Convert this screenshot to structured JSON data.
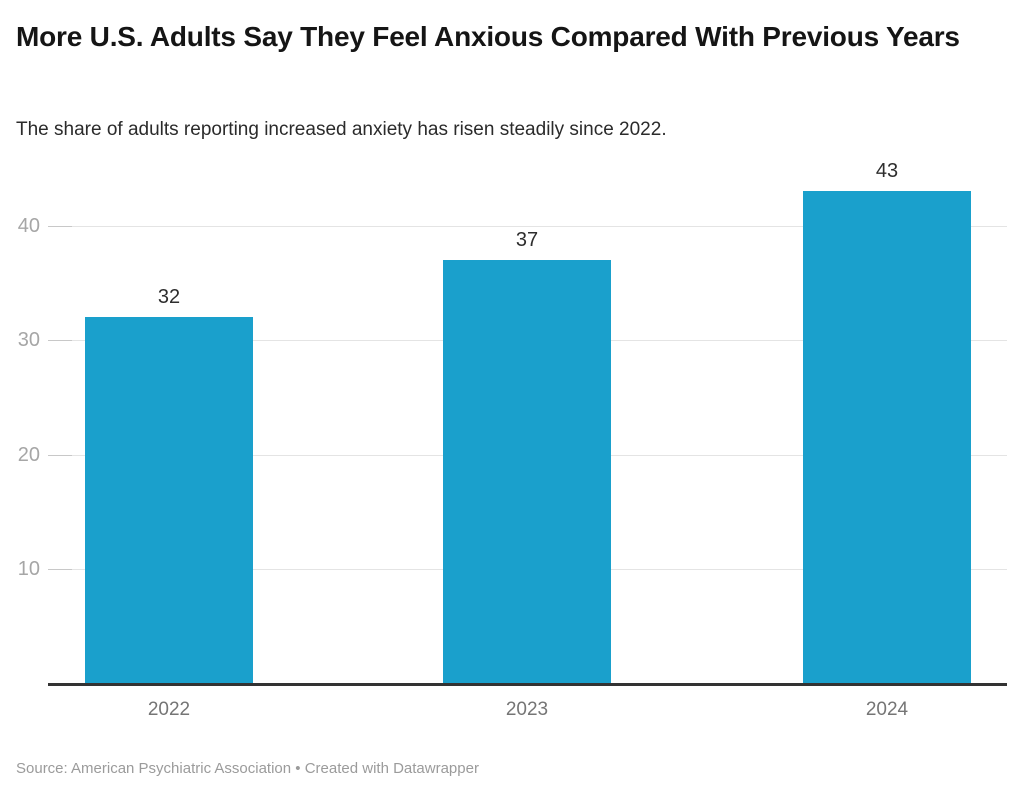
{
  "chart_data": {
    "type": "bar",
    "title": "More U.S. Adults Say They Feel Anxious Compared With Previous Years",
    "subtitle": "The share of adults reporting increased anxiety has risen steadily since 2022.",
    "categories": [
      "2022",
      "2023",
      "2024"
    ],
    "values": [
      32,
      37,
      43
    ],
    "xlabel": "",
    "ylabel": "",
    "ylim": [
      0,
      44
    ],
    "yticks": [
      10,
      20,
      30,
      40
    ],
    "grid": true,
    "legend": false
  },
  "footer": {
    "source": "Source: American Psychiatric Association • Created with Datawrapper"
  },
  "colors": {
    "bar": "#1aa0cc",
    "gridline": "#e4e4e4",
    "tick_dash": "#c8c8c8",
    "baseline": "#333333",
    "y_label": "#a6a6a6",
    "x_label": "#757575",
    "value_label": "#2e2e2e",
    "title_text": "#151515",
    "subtitle_text": "#2b2b2b",
    "footer_text": "#9b9b9b"
  }
}
